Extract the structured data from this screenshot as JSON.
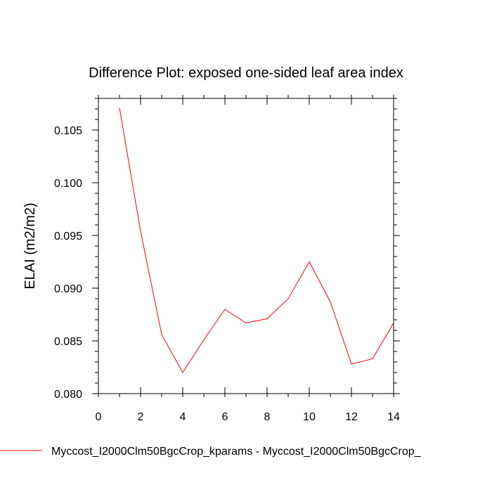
{
  "chart_data": {
    "type": "line",
    "title": "Difference Plot: exposed one-sided leaf area index",
    "xlabel": "",
    "ylabel": "ELAI  (m2/m2)",
    "xlim": [
      0,
      14
    ],
    "ylim": [
      0.08,
      0.108
    ],
    "xticks": [
      0,
      2,
      4,
      6,
      8,
      10,
      12,
      14
    ],
    "xtick_labels": [
      "0",
      "2",
      "4",
      "6",
      "8",
      "10",
      "12",
      "14"
    ],
    "yticks": [
      0.08,
      0.085,
      0.09,
      0.095,
      0.1,
      0.105
    ],
    "ytick_labels": [
      "0.080",
      "0.085",
      "0.090",
      "0.095",
      "0.100",
      "0.105"
    ],
    "grid": false,
    "legend_position": "bottom",
    "series": [
      {
        "name": "Myccost_I2000Clm50BgcCrop_kparams - Myccost_I2000Clm50BgcCrop_",
        "color": "#ff0000",
        "x": [
          1,
          2,
          3,
          4,
          5,
          6,
          7,
          8,
          9,
          10,
          11,
          12,
          13,
          14
        ],
        "y": [
          0.1071,
          0.0954,
          0.0856,
          0.082,
          0.0851,
          0.088,
          0.0867,
          0.0871,
          0.089,
          0.0925,
          0.0887,
          0.0828,
          0.0833,
          0.0867
        ]
      }
    ]
  }
}
